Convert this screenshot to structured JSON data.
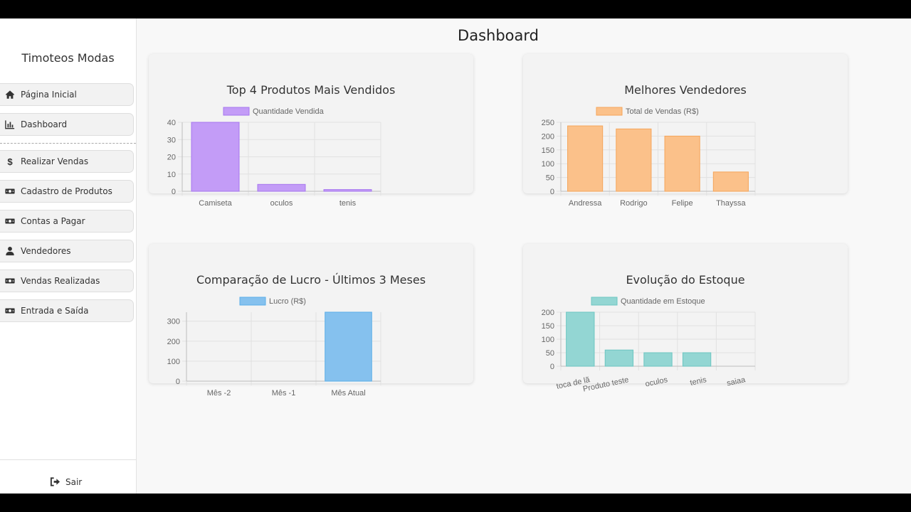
{
  "sidebar": {
    "brand": "Timoteos Modas",
    "items": [
      {
        "label": "Página Inicial",
        "icon": "home-icon"
      },
      {
        "label": "Dashboard",
        "icon": "bar-chart-icon"
      },
      {
        "label": "Realizar Vendas",
        "icon": "dollar-icon"
      },
      {
        "label": "Cadastro de Produtos",
        "icon": "money-bill-icon"
      },
      {
        "label": "Contas a Pagar",
        "icon": "money-bill-icon"
      },
      {
        "label": "Vendedores",
        "icon": "user-icon"
      },
      {
        "label": "Vendas Realizadas",
        "icon": "money-bill-icon"
      },
      {
        "label": "Entrada e Saída",
        "icon": "money-bill-icon"
      }
    ],
    "logout": "Sair"
  },
  "page": {
    "title": "Dashboard"
  },
  "chart_data": [
    {
      "type": "bar",
      "title": "Top 4 Produtos Mais Vendidos",
      "categories": [
        "Camiseta",
        "oculos",
        "tenis"
      ],
      "series": [
        {
          "name": "Quantidade Vendida",
          "values": [
            40,
            4,
            1
          ]
        }
      ],
      "ylim": [
        0,
        40
      ],
      "yticks": [
        0,
        10,
        20,
        30,
        40
      ],
      "color": "#c39cf7",
      "border": "#a676ef",
      "legend": "top",
      "grid": true
    },
    {
      "type": "bar",
      "title": "Melhores Vendedores",
      "categories": [
        "Andressa",
        "Rodrigo",
        "Felipe",
        "Thayssa"
      ],
      "series": [
        {
          "name": "Total de Vendas (R$)",
          "values": [
            237,
            226,
            200,
            70
          ]
        }
      ],
      "ylim": [
        0,
        250
      ],
      "yticks": [
        0,
        50,
        100,
        150,
        200,
        250
      ],
      "color": "#fbc18a",
      "border": "#f5a55a",
      "legend": "top",
      "grid": true
    },
    {
      "type": "bar",
      "title": "Comparação de Lucro - Últimos 3 Meses",
      "categories": [
        "Mês -2",
        "Mês -1",
        "Mês Atual"
      ],
      "series": [
        {
          "name": "Lucro (R$)",
          "values": [
            0,
            0,
            345
          ]
        }
      ],
      "ylim": [
        0,
        345
      ],
      "yticks": [
        0,
        100,
        200,
        300
      ],
      "color": "#85c1ee",
      "border": "#5aaee8",
      "legend": "top",
      "grid": true
    },
    {
      "type": "bar",
      "title": "Evolução do Estoque",
      "categories": [
        "toca de lã",
        "Produto teste",
        "oculos",
        "tenis",
        "saiaa"
      ],
      "series": [
        {
          "name": "Quantidade em Estoque",
          "values": [
            200,
            60,
            50,
            50,
            0
          ]
        }
      ],
      "ylim": [
        0,
        200
      ],
      "yticks": [
        0,
        50,
        100,
        150,
        200
      ],
      "color": "#93d6d3",
      "border": "#6cc6c2",
      "legend": "top",
      "grid": true
    }
  ]
}
